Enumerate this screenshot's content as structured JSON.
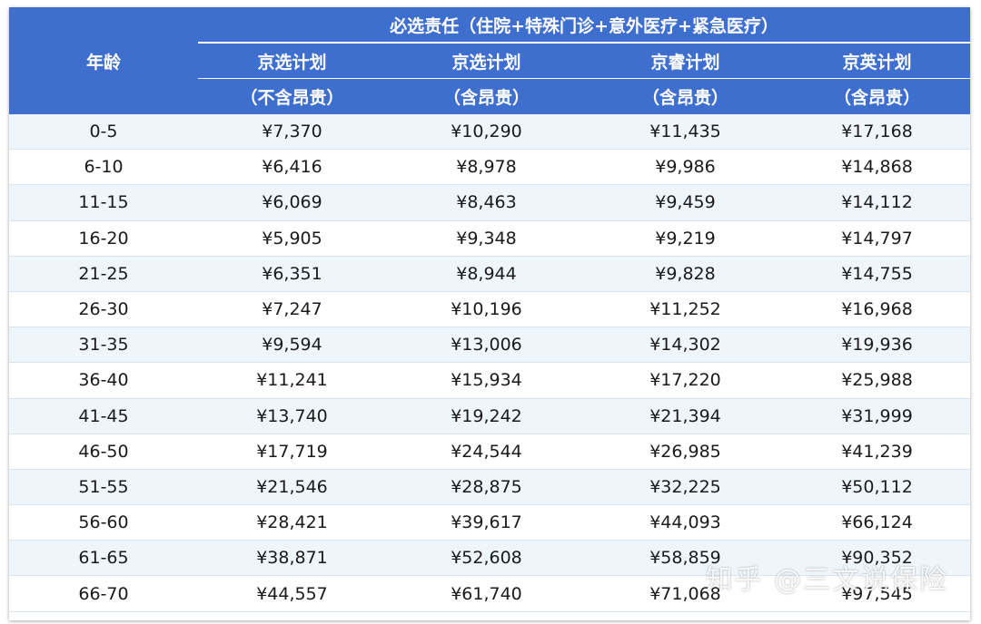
{
  "table": {
    "group_header": "必选责任（住院+特殊门诊+意外医疗+紧急医疗）",
    "age_header": "年龄",
    "plans": [
      {
        "name": "京选计划",
        "note": "（不含昂贵）"
      },
      {
        "name": "京选计划",
        "note": "（含昂贵）"
      },
      {
        "name": "京睿计划",
        "note": "（含昂贵）"
      },
      {
        "name": "京英计划",
        "note": "（含昂贵）"
      }
    ],
    "rows": [
      [
        "0-5",
        "¥7,370",
        "¥10,290",
        "¥11,435",
        "¥17,168"
      ],
      [
        "6-10",
        "¥6,416",
        "¥8,978",
        "¥9,986",
        "¥14,868"
      ],
      [
        "11-15",
        "¥6,069",
        "¥8,463",
        "¥9,459",
        "¥14,112"
      ],
      [
        "16-20",
        "¥5,905",
        "¥9,348",
        "¥9,219",
        "¥14,797"
      ],
      [
        "21-25",
        "¥6,351",
        "¥8,944",
        "¥9,828",
        "¥14,755"
      ],
      [
        "26-30",
        "¥7,247",
        "¥10,196",
        "¥11,252",
        "¥16,968"
      ],
      [
        "31-35",
        "¥9,594",
        "¥13,006",
        "¥14,302",
        "¥19,936"
      ],
      [
        "36-40",
        "¥11,241",
        "¥15,934",
        "¥17,220",
        "¥25,988"
      ],
      [
        "41-45",
        "¥13,740",
        "¥19,242",
        "¥21,394",
        "¥31,999"
      ],
      [
        "46-50",
        "¥17,719",
        "¥24,544",
        "¥26,985",
        "¥41,239"
      ],
      [
        "51-55",
        "¥21,546",
        "¥28,875",
        "¥32,225",
        "¥50,112"
      ],
      [
        "56-60",
        "¥28,421",
        "¥39,617",
        "¥44,093",
        "¥66,124"
      ],
      [
        "61-65",
        "¥38,871",
        "¥52,608",
        "¥58,859",
        "¥90,352"
      ],
      [
        "66-70",
        "¥44,557",
        "¥61,740",
        "¥71,068",
        "¥97,545"
      ]
    ]
  },
  "watermark": "知乎 @三文说保险",
  "colors": {
    "header_bg": "#3f6fce",
    "row_stripe": "#eef6fb",
    "row_plain": "#ffffff"
  }
}
